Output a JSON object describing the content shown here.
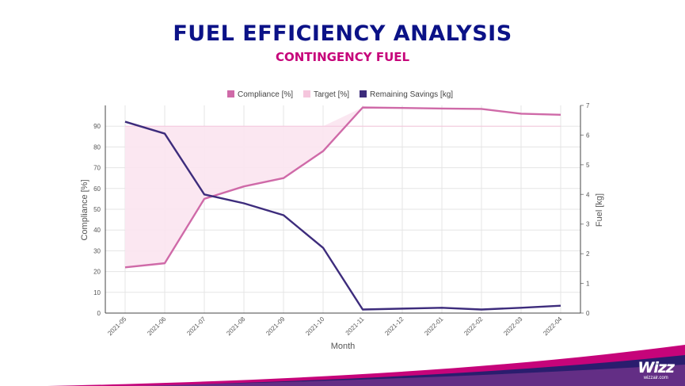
{
  "header": {
    "title": "FUEL EFFICIENCY ANALYSIS",
    "subtitle": "CONTINGENCY FUEL"
  },
  "brand": {
    "logo_text": "Wizz",
    "url": "wizzair.com"
  },
  "colors": {
    "title": "#0b1287",
    "subtitle": "#c6047a",
    "compliance": "#cf6aa8",
    "target_fill": "#fbe4f0",
    "target_line": "#f5c6dd",
    "savings": "#3d2c7c",
    "grid": "#e5e5e5"
  },
  "chart_data": {
    "type": "line",
    "categories": [
      "2021-05",
      "2021-06",
      "2021-07",
      "2021-08",
      "2021-09",
      "2021-10",
      "2021-11",
      "2021-12",
      "2022-01",
      "2022-02",
      "2022-03",
      "2022-04"
    ],
    "series": [
      {
        "name": "Compliance [%]",
        "axis": "left",
        "kind": "line",
        "values": [
          22,
          24,
          55,
          61,
          65,
          78,
          99,
          98.8,
          98.5,
          98.3,
          96,
          95.5
        ]
      },
      {
        "name": "Target [%]",
        "axis": "left",
        "kind": "area",
        "values": [
          90,
          90,
          90,
          90,
          90,
          90,
          90,
          90,
          90,
          90,
          90,
          90
        ]
      },
      {
        "name": "Remaining Savings [kg]",
        "axis": "right",
        "kind": "line",
        "values": [
          6.45,
          6.05,
          4,
          3.7,
          3.3,
          2.2,
          0.12,
          0.15,
          0.18,
          0.12,
          0.18,
          0.25
        ]
      }
    ],
    "xlabel": "Month",
    "ylabel": "Compliance [%]",
    "y2label": "Fuel [kg]",
    "ylim": [
      0,
      100
    ],
    "y2lim": [
      0,
      7
    ],
    "yticks": [
      0,
      10,
      20,
      30,
      40,
      50,
      60,
      70,
      80,
      90
    ],
    "y2ticks": [
      0,
      1,
      2,
      3,
      4,
      5,
      6,
      7
    ],
    "grid": true,
    "legend_position": "top-center"
  }
}
